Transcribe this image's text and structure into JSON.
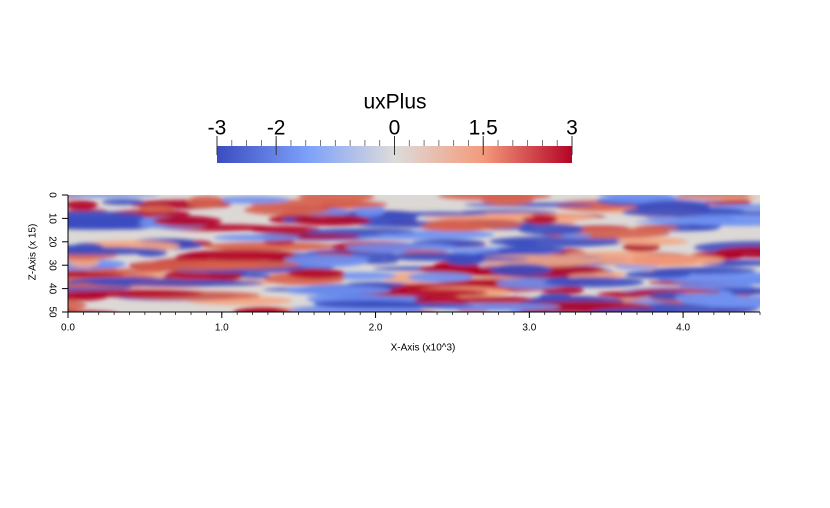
{
  "colorbar": {
    "title": "uxPlus",
    "range": [
      -3,
      3
    ],
    "ticks": [
      -3,
      -2,
      0,
      1.5,
      3
    ]
  },
  "plot": {
    "x_axis_label": "X-Axis (x10^3)",
    "z_axis_label": "Z-Axis (x 15)",
    "xlim": [
      0,
      4.5
    ],
    "x_ticks": [
      {
        "value": 0,
        "label": "0.0"
      },
      {
        "value": 1,
        "label": "1.0"
      },
      {
        "value": 2,
        "label": "2.0"
      },
      {
        "value": 3,
        "label": "3.0"
      },
      {
        "value": 4,
        "label": "4.0"
      }
    ],
    "zlim": [
      0,
      50
    ],
    "z_ticks": [
      0,
      10,
      20,
      30,
      40,
      50
    ]
  }
}
